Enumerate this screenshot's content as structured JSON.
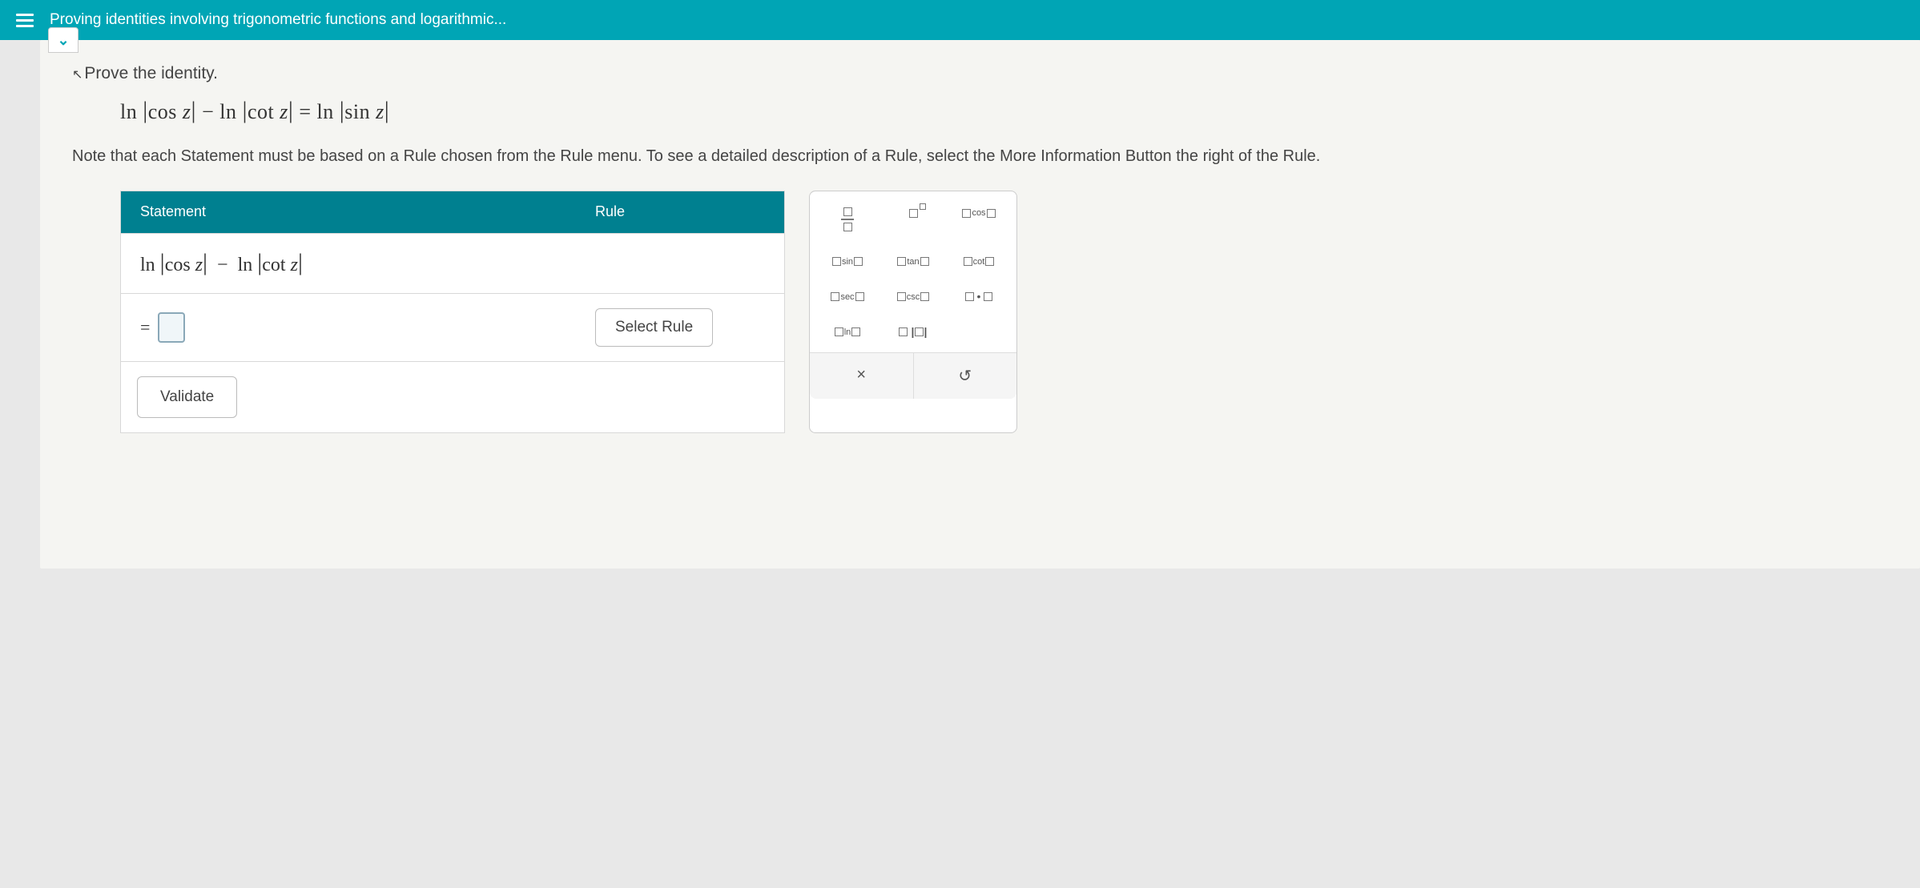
{
  "header": {
    "title": "Proving identities involving trigonometric functions and logarithmic..."
  },
  "prompt": {
    "instruction": "Prove the identity.",
    "equation_html": "ln |cos z| − ln |cot z| = ln |sin z|",
    "note": "Note that each Statement must be based on a Rule chosen from the Rule menu. To see a detailed description of a Rule, select the More Information Button the right of the Rule."
  },
  "table": {
    "header_statement": "Statement",
    "header_rule": "Rule",
    "row1_expr": "ln |cos z| − ln |cot z|",
    "select_rule_label": "Select Rule",
    "validate_label": "Validate",
    "equals_sign": "="
  },
  "palette": {
    "items": [
      {
        "id": "frac",
        "label": "fraction"
      },
      {
        "id": "exp",
        "label": "exponent"
      },
      {
        "id": "cos",
        "label": "cos"
      },
      {
        "id": "sin",
        "label": "sin"
      },
      {
        "id": "tan",
        "label": "tan"
      },
      {
        "id": "cot",
        "label": "cot"
      },
      {
        "id": "sec",
        "label": "sec"
      },
      {
        "id": "csc",
        "label": "csc"
      },
      {
        "id": "dot",
        "label": "·"
      },
      {
        "id": "ln",
        "label": "ln"
      },
      {
        "id": "abs",
        "label": "| |"
      }
    ],
    "close_label": "×",
    "reset_label": "↺"
  },
  "colors": {
    "header_bg": "#00a5b5",
    "table_header_bg": "#008090",
    "panel_bg": "#f5f5f2"
  }
}
